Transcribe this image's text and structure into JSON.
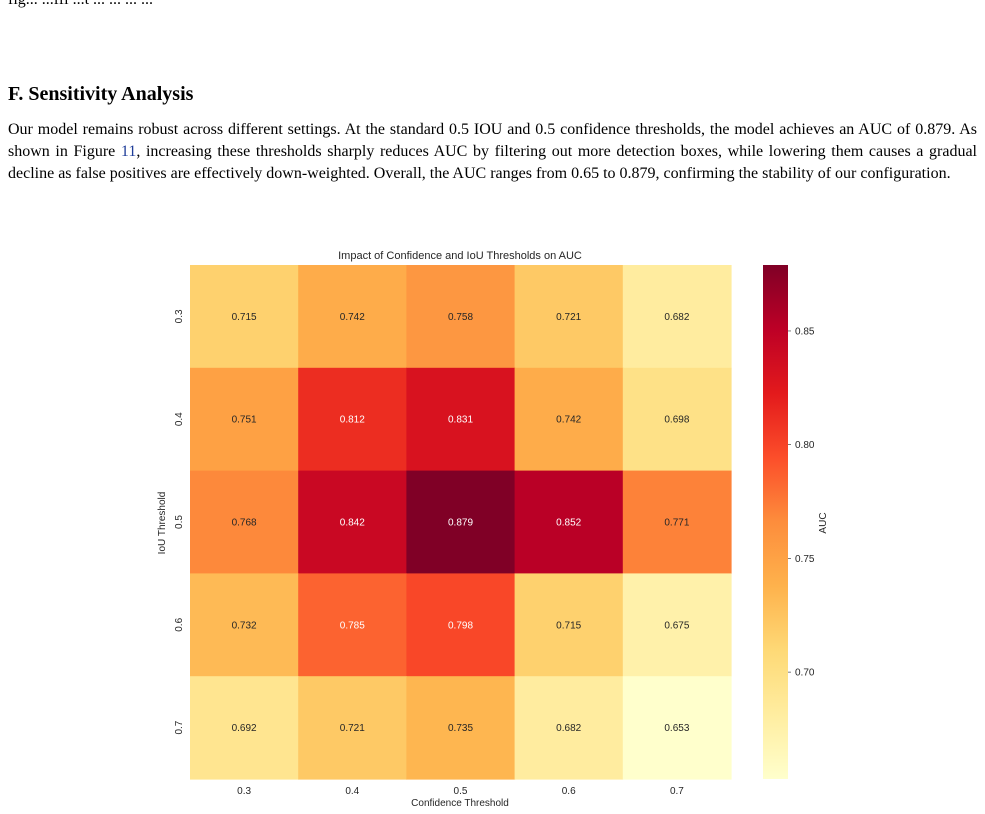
{
  "top_fragment": "fig...  ...ffi  ...t  ...  ...  ...  ...",
  "section": {
    "heading": "F. Sensitivity Analysis",
    "paragraph_before_ref": "Our model remains robust across different settings. At the standard 0.5 IOU and 0.5 confidence thresholds, the model achieves an AUC of 0.879. As shown in Figure ",
    "figure_ref": "11",
    "paragraph_after_ref": ", increasing these thresholds sharply reduces AUC by filtering out more detection boxes, while lowering them causes a gradual decline as false positives are effectively down-weighted. Overall, the AUC ranges from 0.65 to 0.879, confirming the stability of our configuration."
  },
  "chart_data": {
    "type": "heatmap",
    "title": "Impact of Confidence and IoU Thresholds on AUC",
    "xlabel": "Confidence Threshold",
    "ylabel": "IoU Threshold",
    "x_categories": [
      "0.3",
      "0.4",
      "0.5",
      "0.6",
      "0.7"
    ],
    "y_categories": [
      "0.3",
      "0.4",
      "0.5",
      "0.6",
      "0.7"
    ],
    "values": [
      [
        0.715,
        0.742,
        0.758,
        0.721,
        0.682
      ],
      [
        0.751,
        0.812,
        0.831,
        0.742,
        0.698
      ],
      [
        0.768,
        0.842,
        0.879,
        0.852,
        0.771
      ],
      [
        0.732,
        0.785,
        0.798,
        0.715,
        0.675
      ],
      [
        0.692,
        0.721,
        0.735,
        0.682,
        0.653
      ]
    ],
    "colorbar": {
      "label": "AUC",
      "range": [
        0.653,
        0.879
      ],
      "ticks": [
        0.7,
        0.75,
        0.8,
        0.85
      ],
      "tick_labels": [
        "0.70",
        "0.75",
        "0.80",
        "0.85"
      ],
      "colormap": "YlOrRd",
      "colormap_stops": [
        "#ffffcc",
        "#ffeda0",
        "#fed976",
        "#feb24c",
        "#fd8d3c",
        "#fc4e2a",
        "#e31a1c",
        "#bd0026",
        "#800026"
      ]
    },
    "annotation_colors": {
      "dark_text": "#262626",
      "light_text": "#ffffff"
    }
  }
}
